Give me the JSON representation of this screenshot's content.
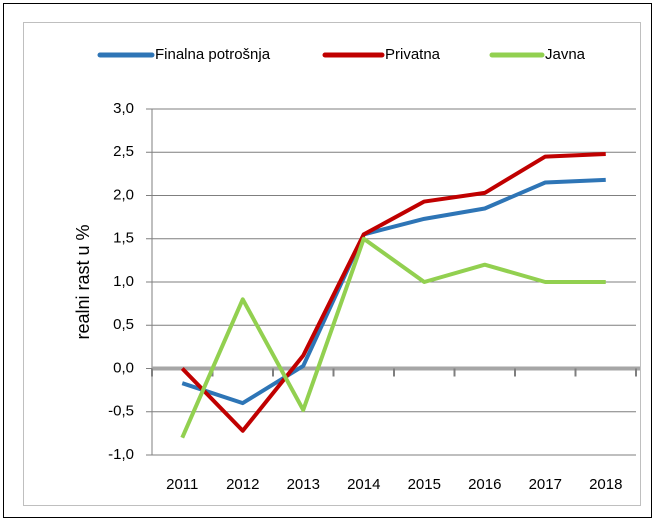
{
  "chart_data": {
    "type": "line",
    "y_label": "realni rast u %",
    "categories": [
      "2011",
      "2012",
      "2013",
      "2014",
      "2015",
      "2016",
      "2017",
      "2018"
    ],
    "series": [
      {
        "name": "Finalna potrošnja",
        "color": "#2e75b6",
        "values": [
          -0.17,
          -0.4,
          0.03,
          1.55,
          1.73,
          1.85,
          2.15,
          2.18
        ]
      },
      {
        "name": "Privatna",
        "color": "#c00000",
        "values": [
          0.0,
          -0.72,
          0.15,
          1.55,
          1.93,
          2.03,
          2.45,
          2.48
        ]
      },
      {
        "name": "Javna",
        "color": "#92d050",
        "values": [
          -0.8,
          0.8,
          -0.48,
          1.5,
          1.0,
          1.2,
          1.0,
          1.0
        ]
      }
    ],
    "ylim": [
      -1.0,
      3.0
    ],
    "yticks": [
      {
        "value": -1.0,
        "label": "-1,0"
      },
      {
        "value": -0.5,
        "label": "-0,5"
      },
      {
        "value": 0,
        "label": "0,0"
      },
      {
        "value": 0.5,
        "label": "0,5"
      },
      {
        "value": 1.0,
        "label": "1,0"
      },
      {
        "value": 1.5,
        "label": "1,5"
      },
      {
        "value": 2.0,
        "label": "2,0"
      },
      {
        "value": 2.5,
        "label": "2,5"
      },
      {
        "value": 3.0,
        "label": "3,0"
      }
    ],
    "grid": true,
    "legend": "top"
  }
}
